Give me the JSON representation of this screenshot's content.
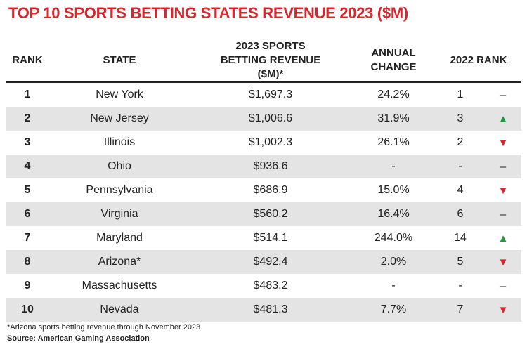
{
  "title": "TOP 10 SPORTS BETTING STATES REVENUE 2023 ($M)",
  "table": {
    "headers": [
      "RANK",
      "STATE",
      "2023 SPORTS BETTING REVENUE ($M)*",
      "ANNUAL CHANGE",
      "2022 RANK"
    ],
    "rows": [
      {
        "rank": "1",
        "state": "New York",
        "revenue": "$1,697.3",
        "change": "24.2%",
        "rank_2022": "1",
        "trend": {
          "symbol": "–",
          "color": "#222222"
        }
      },
      {
        "rank": "2",
        "state": "New Jersey",
        "revenue": "$1,006.6",
        "change": "31.9%",
        "rank_2022": "3",
        "trend": {
          "symbol": "▲",
          "color": "#1f9a3e"
        }
      },
      {
        "rank": "3",
        "state": "Illinois",
        "revenue": "$1,002.3",
        "change": "26.1%",
        "rank_2022": "2",
        "trend": {
          "symbol": "▼",
          "color": "#d7262c"
        }
      },
      {
        "rank": "4",
        "state": "Ohio",
        "revenue": "$936.6",
        "change": "-",
        "rank_2022": "-",
        "trend": {
          "symbol": "–",
          "color": "#222222"
        }
      },
      {
        "rank": "5",
        "state": "Pennsylvania",
        "revenue": "$686.9",
        "change": "15.0%",
        "rank_2022": "4",
        "trend": {
          "symbol": "▼",
          "color": "#d7262c"
        }
      },
      {
        "rank": "6",
        "state": "Virginia",
        "revenue": "$560.2",
        "change": "16.4%",
        "rank_2022": "6",
        "trend": {
          "symbol": "–",
          "color": "#222222"
        }
      },
      {
        "rank": "7",
        "state": "Maryland",
        "revenue": "$514.1",
        "change": "244.0%",
        "rank_2022": "14",
        "trend": {
          "symbol": "▲",
          "color": "#1f9a3e"
        }
      },
      {
        "rank": "8",
        "state": "Arizona*",
        "revenue": "$492.4",
        "change": "2.0%",
        "rank_2022": "5",
        "trend": {
          "symbol": "▼",
          "color": "#d7262c"
        }
      },
      {
        "rank": "9",
        "state": "Massachusetts",
        "revenue": "$483.2",
        "change": "-",
        "rank_2022": "-",
        "trend": {
          "symbol": "–",
          "color": "#222222"
        }
      },
      {
        "rank": "10",
        "state": "Nevada",
        "revenue": "$481.3",
        "change": "7.7%",
        "rank_2022": "7",
        "trend": {
          "symbol": "▼",
          "color": "#d7262c"
        }
      }
    ]
  },
  "footnote": "*Arizona sports betting revenue through November 2023.",
  "source": "Source: American Gaming Association"
}
